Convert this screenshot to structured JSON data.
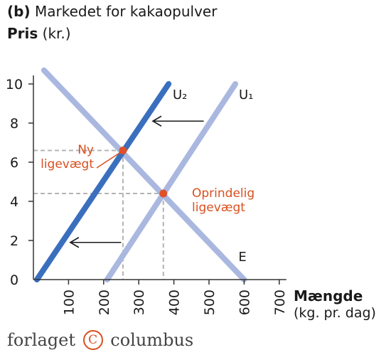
{
  "panel_label": "(b)",
  "title": "Markedet for kakaopulver",
  "ylabel": {
    "main": "Pris",
    "unit": "(kr.)"
  },
  "xlabel": {
    "main": "Mængde",
    "unit": "(kg. pr. dag)"
  },
  "footer": {
    "left": "forlaget",
    "symbol": "C",
    "right": "columbus"
  },
  "colors": {
    "demand": "#aab8e0",
    "supply_original": "#aab8e0",
    "supply_new": "#3a6fbe",
    "equilibrium": "#e0502a",
    "guide": "#b4b4b4",
    "axis": "#333333",
    "label_red": "#d9501f"
  },
  "chart_data": {
    "type": "line",
    "xlim": [
      0,
      700
    ],
    "ylim": [
      0,
      10
    ],
    "x_ticks": [
      "100",
      "200",
      "300",
      "400",
      "500",
      "600",
      "700"
    ],
    "y_ticks": [
      "0",
      "2",
      "4",
      "6",
      "8",
      "10"
    ],
    "grid": false,
    "series": [
      {
        "name": "E",
        "points": [
          [
            30,
            10.7
          ],
          [
            600,
            0
          ]
        ]
      },
      {
        "name": "U₁",
        "points": [
          [
            210,
            0
          ],
          [
            575,
            10
          ]
        ]
      },
      {
        "name": "U₂",
        "points": [
          [
            10,
            0
          ],
          [
            385,
            10
          ]
        ]
      }
    ],
    "equilibria": [
      {
        "label": [
          "Oprindelig",
          "ligevægt"
        ],
        "x": 370,
        "y": 4.4
      },
      {
        "label": [
          "Ny",
          "ligevægt"
        ],
        "x": 255,
        "y": 6.6
      }
    ],
    "shift_arrows": [
      {
        "from": [
          485,
          8.1
        ],
        "to": [
          340,
          8.1
        ]
      },
      {
        "from": [
          250,
          1.9
        ],
        "to": [
          105,
          1.9
        ]
      }
    ]
  }
}
